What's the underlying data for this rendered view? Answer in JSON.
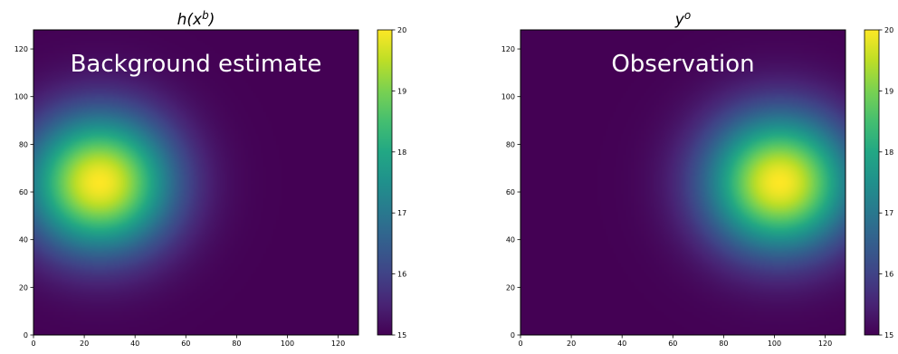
{
  "figure": {
    "chart_data": [
      {
        "type": "heatmap",
        "title": "h(x^b)",
        "title_base": "h(x",
        "title_sup": "b",
        "title_close": ")",
        "annotation": "Background estimate",
        "xlabel": "",
        "ylabel": "",
        "xlim": [
          0,
          128
        ],
        "ylim": [
          0,
          128
        ],
        "xticks": [
          0,
          20,
          40,
          60,
          80,
          100,
          120
        ],
        "yticks": [
          0,
          20,
          40,
          60,
          80,
          100,
          120
        ],
        "field": {
          "center_x": 26,
          "center_y": 64,
          "sigma": 20,
          "base": 15,
          "amplitude": 5
        },
        "colormap": "viridis",
        "colorbar": {
          "min": 15,
          "max": 20,
          "ticks": [
            15,
            16,
            17,
            18,
            19,
            20
          ]
        },
        "grid": false
      },
      {
        "type": "heatmap",
        "title": "y^o",
        "title_base": "y",
        "title_sup": "o",
        "title_close": "",
        "annotation": "Observation",
        "xlabel": "",
        "ylabel": "",
        "xlim": [
          0,
          128
        ],
        "ylim": [
          0,
          128
        ],
        "xticks": [
          0,
          20,
          40,
          60,
          80,
          100,
          120
        ],
        "yticks": [
          0,
          20,
          40,
          60,
          80,
          100,
          120
        ],
        "field": {
          "center_x": 102,
          "center_y": 64,
          "sigma": 20,
          "base": 15,
          "amplitude": 5
        },
        "colormap": "viridis",
        "colorbar": {
          "min": 15,
          "max": 20,
          "ticks": [
            15,
            16,
            17,
            18,
            19,
            20
          ]
        },
        "grid": false
      }
    ]
  }
}
